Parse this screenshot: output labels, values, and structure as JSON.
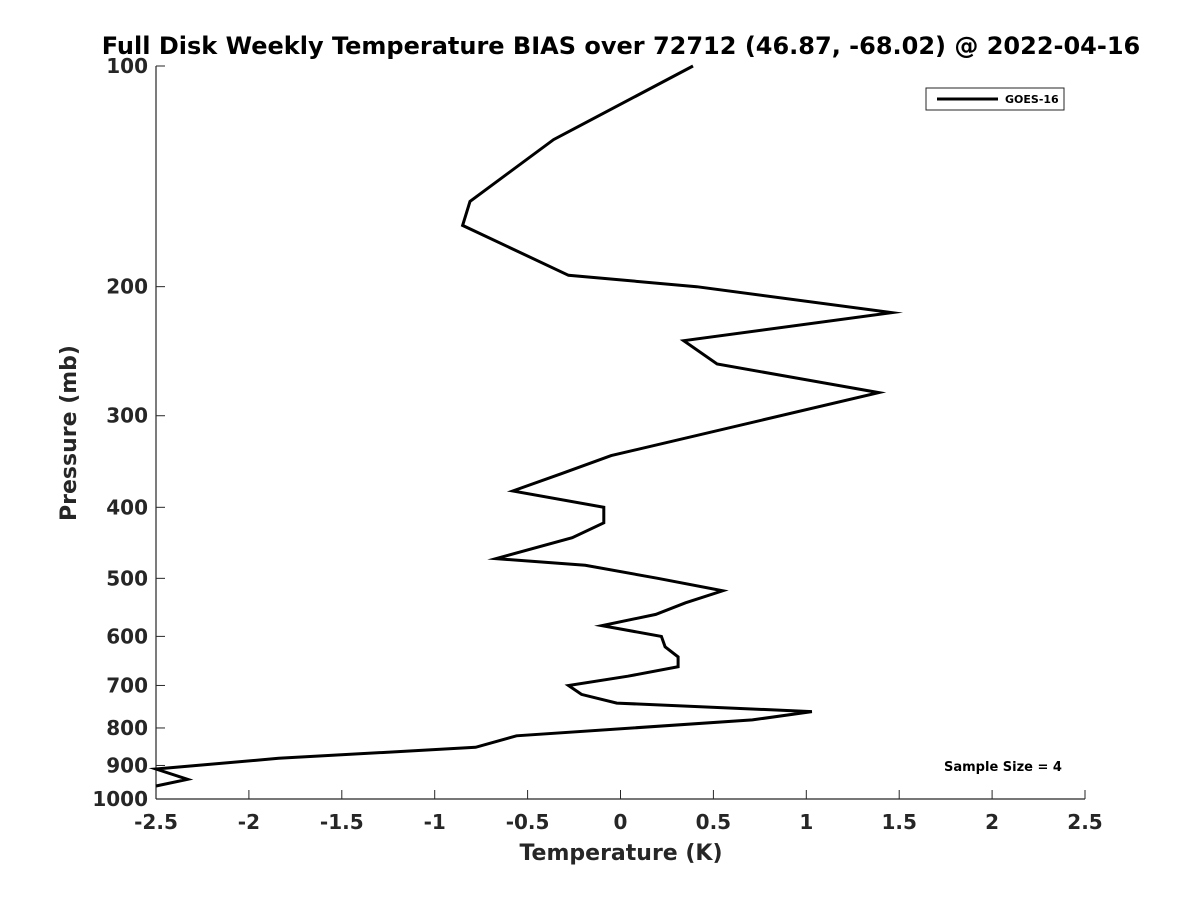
{
  "chart_data": {
    "type": "line",
    "title": "Full Disk Weekly Temperature BIAS over 72712 (46.87, -68.02) @ 2022-04-16",
    "xlabel": "Temperature (K)",
    "ylabel": "Pressure (mb)",
    "xlim": [
      -2.5,
      2.5
    ],
    "ylim": [
      100,
      1000
    ],
    "y_scale": "log",
    "y_reversed": true,
    "x_ticks": [
      -2.5,
      -2,
      -1.5,
      -1,
      -0.5,
      0,
      0.5,
      1,
      1.5,
      2,
      2.5
    ],
    "x_tick_labels": [
      "-2.5",
      "-2",
      "-1.5",
      "-1",
      "-0.5",
      "0",
      "0.5",
      "1",
      "1.5",
      "2",
      "2.5"
    ],
    "y_ticks": [
      100,
      200,
      300,
      400,
      500,
      600,
      700,
      800,
      900,
      1000
    ],
    "y_tick_labels": [
      "100",
      "200",
      "300",
      "400",
      "500",
      "600",
      "700",
      "800",
      "900",
      "1000"
    ],
    "grid": false,
    "legend_position": "top-right",
    "annotation": "Sample Size = 4",
    "series": [
      {
        "name": "GOES-16",
        "color": "#000000",
        "x": [
          0.39,
          -0.36,
          -0.81,
          -0.85,
          -0.28,
          0.41,
          1.46,
          0.34,
          0.52,
          1.39,
          -0.05,
          -0.32,
          -0.58,
          -0.09,
          -0.09,
          -0.26,
          -0.67,
          -0.19,
          0.2,
          0.55,
          0.35,
          0.19,
          -0.1,
          0.22,
          0.24,
          0.31,
          0.31,
          0.04,
          -0.28,
          -0.21,
          -0.02,
          1.03,
          0.71,
          -0.56,
          -0.78,
          -1.84,
          -2.5,
          -2.33,
          -2.5
        ],
        "y": [
          100,
          126,
          153,
          165,
          193,
          200,
          217,
          237,
          255,
          279,
          340,
          360,
          380,
          400,
          420,
          440,
          470,
          480,
          500,
          520,
          540,
          560,
          580,
          600,
          620,
          640,
          660,
          680,
          700,
          720,
          740,
          760,
          780,
          820,
          850,
          880,
          910,
          940,
          960
        ]
      }
    ]
  }
}
